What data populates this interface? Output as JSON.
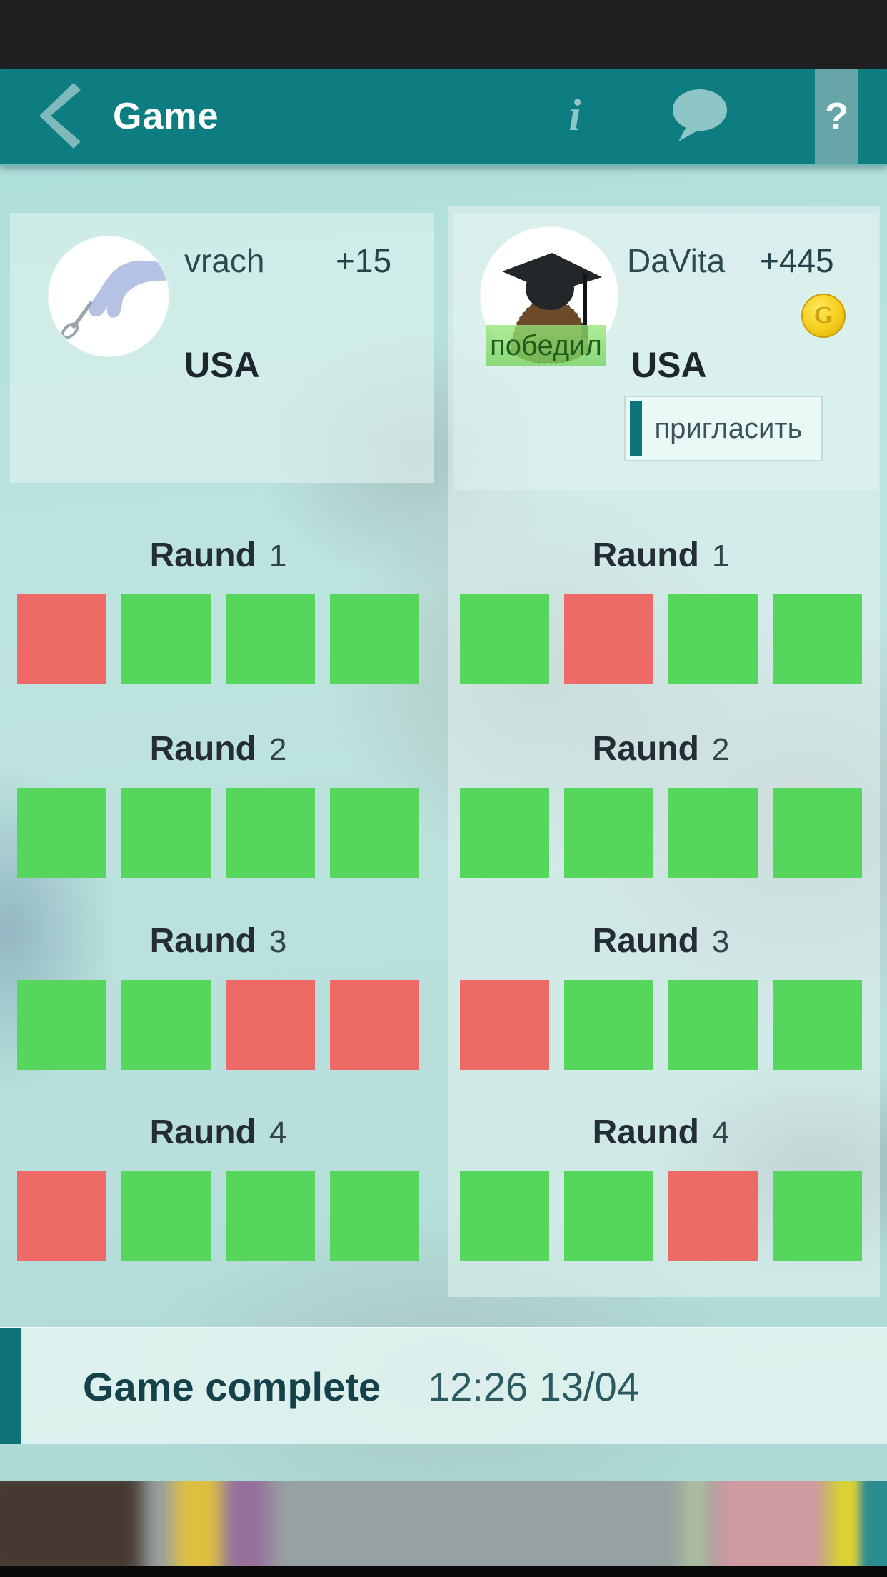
{
  "header": {
    "title": "Game",
    "back_icon": "chevron-left",
    "info_glyph": "i",
    "chat_icon": "speech-bubble",
    "help_glyph": "?"
  },
  "players": {
    "left": {
      "name": "vrach",
      "score_delta": "+15",
      "country": "USA"
    },
    "right": {
      "name": "DaVita",
      "score_delta": "+445",
      "country": "USA",
      "winner_badge": "победил",
      "invite_button": "пригласить",
      "coin_icon": "gold-coin",
      "coin_letter": "G"
    }
  },
  "rounds": [
    {
      "label": "Raund",
      "number": "1",
      "left_results": [
        "wrong",
        "correct",
        "correct",
        "correct"
      ],
      "right_results": [
        "correct",
        "wrong",
        "correct",
        "correct"
      ]
    },
    {
      "label": "Raund",
      "number": "2",
      "left_results": [
        "correct",
        "correct",
        "correct",
        "correct"
      ],
      "right_results": [
        "correct",
        "correct",
        "correct",
        "correct"
      ]
    },
    {
      "label": "Raund",
      "number": "3",
      "left_results": [
        "correct",
        "correct",
        "wrong",
        "wrong"
      ],
      "right_results": [
        "wrong",
        "correct",
        "correct",
        "correct"
      ]
    },
    {
      "label": "Raund",
      "number": "4",
      "left_results": [
        "wrong",
        "correct",
        "correct",
        "correct"
      ],
      "right_results": [
        "correct",
        "correct",
        "wrong",
        "correct"
      ]
    }
  ],
  "footer": {
    "status": "Game complete",
    "timestamp": "12:26 13/04"
  },
  "colors": {
    "header_teal": "#0d7d81",
    "correct_green": "#56d65c",
    "wrong_red": "#ee6a67",
    "accent_dark_teal": "#0d7377",
    "winner_green": "#8ede76",
    "coin_gold": "#f6cd1b"
  }
}
